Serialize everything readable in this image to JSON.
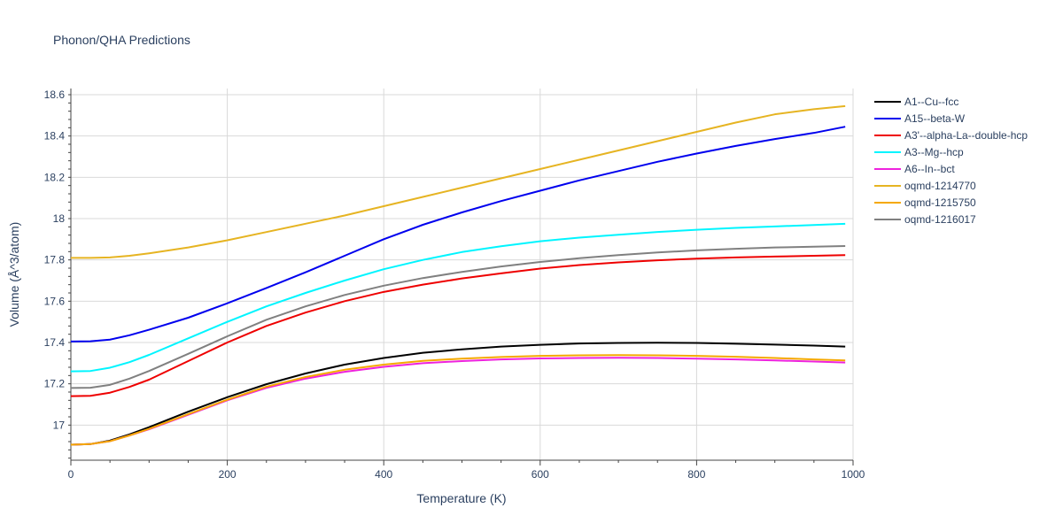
{
  "chart_data": {
    "type": "line",
    "title": "Phonon/QHA Predictions",
    "xlabel": "Temperature (K)",
    "ylabel": "Volume (Å^3/atom)",
    "xlim": [
      0,
      1000
    ],
    "ylim": [
      16.83,
      18.63
    ],
    "x_ticks": [
      "0",
      "200",
      "400",
      "600",
      "800",
      "1000"
    ],
    "x_tick_values": [
      0,
      200,
      400,
      600,
      800,
      1000
    ],
    "y_ticks": [
      "17",
      "17.2",
      "17.4",
      "17.6",
      "17.8",
      "18",
      "18.2",
      "18.4",
      "18.6"
    ],
    "y_tick_values": [
      17.0,
      17.2,
      17.4,
      17.6,
      17.8,
      18.0,
      18.2,
      18.4,
      18.6
    ],
    "grid": true,
    "legend_position": "right",
    "x": [
      0,
      25,
      50,
      75,
      100,
      150,
      200,
      250,
      300,
      350,
      400,
      450,
      500,
      550,
      600,
      650,
      700,
      750,
      800,
      850,
      900,
      950,
      990
    ],
    "series": [
      {
        "name": "A1--Cu--fcc",
        "color": "#000000",
        "values": [
          16.905,
          16.908,
          16.925,
          16.955,
          16.99,
          17.065,
          17.135,
          17.198,
          17.25,
          17.293,
          17.325,
          17.35,
          17.367,
          17.38,
          17.389,
          17.395,
          17.398,
          17.399,
          17.398,
          17.394,
          17.39,
          17.385,
          17.38
        ]
      },
      {
        "name": "A15--beta-W",
        "color": "#0000ee",
        "values": [
          17.405,
          17.406,
          17.414,
          17.435,
          17.462,
          17.52,
          17.59,
          17.664,
          17.74,
          17.82,
          17.9,
          17.97,
          18.03,
          18.085,
          18.135,
          18.185,
          18.23,
          18.275,
          18.315,
          18.352,
          18.385,
          18.415,
          18.445
        ]
      },
      {
        "name": "A3'--alpha-La--double-hcp",
        "color": "#ee0000",
        "values": [
          17.14,
          17.142,
          17.157,
          17.185,
          17.22,
          17.31,
          17.4,
          17.48,
          17.545,
          17.6,
          17.645,
          17.68,
          17.71,
          17.735,
          17.758,
          17.775,
          17.788,
          17.798,
          17.806,
          17.812,
          17.816,
          17.82,
          17.823
        ]
      },
      {
        "name": "A3--Mg--hcp",
        "color": "#00f5ff",
        "values": [
          17.26,
          17.262,
          17.278,
          17.305,
          17.34,
          17.42,
          17.5,
          17.575,
          17.64,
          17.7,
          17.755,
          17.8,
          17.838,
          17.866,
          17.89,
          17.908,
          17.922,
          17.935,
          17.946,
          17.955,
          17.962,
          17.969,
          17.975
        ]
      },
      {
        "name": "A6--In--bct",
        "color": "#ee22dd",
        "values": [
          16.905,
          16.908,
          16.922,
          16.95,
          16.98,
          17.05,
          17.12,
          17.18,
          17.225,
          17.258,
          17.282,
          17.3,
          17.31,
          17.318,
          17.323,
          17.325,
          17.326,
          17.325,
          17.322,
          17.318,
          17.313,
          17.308,
          17.303
        ]
      },
      {
        "name": "oqmd-1214770",
        "color": "#e6b422",
        "values": [
          17.81,
          17.81,
          17.812,
          17.82,
          17.832,
          17.86,
          17.895,
          17.935,
          17.975,
          18.015,
          18.06,
          18.105,
          18.15,
          18.195,
          18.24,
          18.285,
          18.33,
          18.375,
          18.42,
          18.465,
          18.505,
          18.53,
          18.545
        ]
      },
      {
        "name": "oqmd-1215750",
        "color": "#f5a800",
        "values": [
          16.905,
          16.908,
          16.922,
          16.95,
          16.982,
          17.053,
          17.123,
          17.186,
          17.233,
          17.268,
          17.293,
          17.311,
          17.322,
          17.33,
          17.335,
          17.338,
          17.339,
          17.338,
          17.335,
          17.331,
          17.325,
          17.318,
          17.313
        ]
      },
      {
        "name": "oqmd-1216017",
        "color": "#808080",
        "values": [
          17.18,
          17.181,
          17.195,
          17.225,
          17.262,
          17.345,
          17.43,
          17.51,
          17.575,
          17.63,
          17.675,
          17.712,
          17.742,
          17.768,
          17.79,
          17.808,
          17.823,
          17.836,
          17.846,
          17.854,
          17.86,
          17.864,
          17.867
        ]
      }
    ]
  }
}
